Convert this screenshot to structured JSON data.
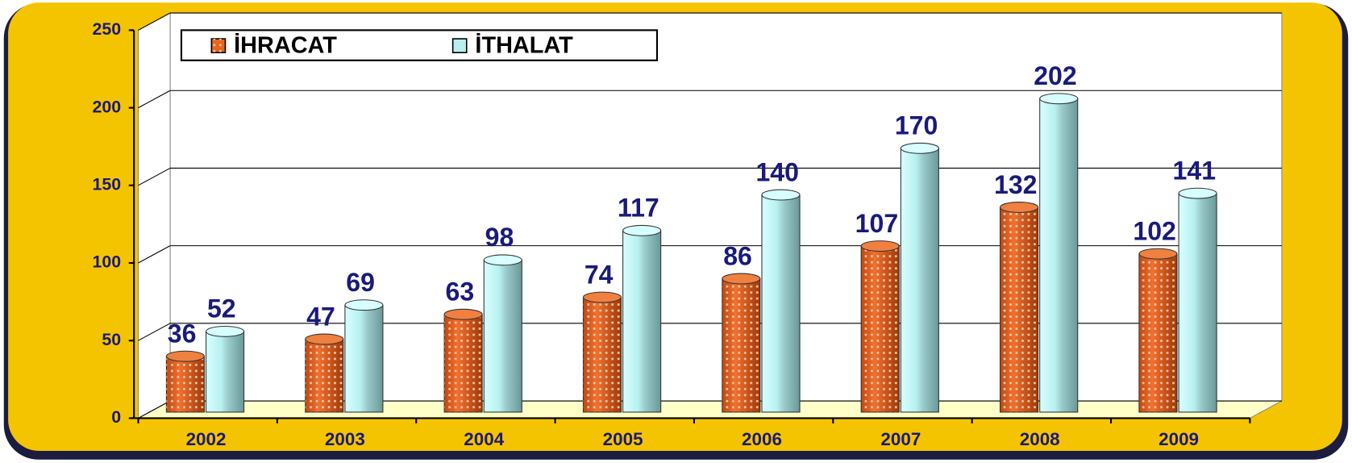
{
  "chart_data": {
    "type": "bar",
    "categories": [
      "2002",
      "2003",
      "2004",
      "2005",
      "2006",
      "2007",
      "2008",
      "2009"
    ],
    "series": [
      {
        "name": "İHRACAT",
        "color": "#e8641e",
        "values": [
          36,
          47,
          63,
          74,
          86,
          107,
          132,
          102
        ]
      },
      {
        "name": "İTHALAT",
        "color": "#b8f0f0",
        "values": [
          52,
          69,
          98,
          117,
          140,
          170,
          202,
          141
        ]
      }
    ],
    "ylim": [
      0,
      250
    ],
    "yticks": [
      0,
      50,
      100,
      150,
      200,
      250
    ],
    "grid": true,
    "legend": "top-left"
  }
}
